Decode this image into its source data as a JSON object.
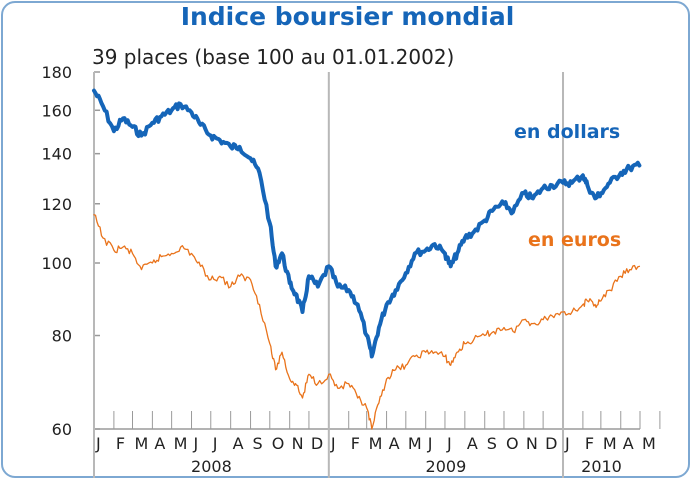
{
  "title": "Indice boursier mondial",
  "subtitle": "39 places (base 100 au 01.01.2002)",
  "colors": {
    "dollars": "#1565b8",
    "euros": "#e9731b",
    "axis": "#9a9a9a",
    "frame": "#7da8d2"
  },
  "chart_data": {
    "type": "line",
    "title": "Indice boursier mondial",
    "subtitle": "39 places (base 100 au 01.01.2002)",
    "y_scale": "log",
    "ylim": [
      60,
      180
    ],
    "y_ticks": [
      60,
      80,
      100,
      120,
      140,
      160,
      180
    ],
    "x_month_labels": [
      "J",
      "F",
      "M",
      "A",
      "M",
      "J",
      "J",
      "A",
      "S",
      "O",
      "N",
      "D",
      "J",
      "F",
      "M",
      "A",
      "M",
      "J",
      "J",
      "A",
      "S",
      "O",
      "N",
      "D",
      "J",
      "F",
      "M",
      "A",
      "M"
    ],
    "years": [
      "2008",
      "2009",
      "2010"
    ],
    "x_range": [
      "2008-01-01",
      "2010-04-30"
    ],
    "grid": false,
    "series": [
      {
        "name": "en dollars",
        "x": [
          "2008-01-01",
          "2008-01-15",
          "2008-02-01",
          "2008-02-15",
          "2008-03-01",
          "2008-03-15",
          "2008-04-01",
          "2008-04-15",
          "2008-05-01",
          "2008-05-15",
          "2008-06-01",
          "2008-06-15",
          "2008-07-01",
          "2008-07-15",
          "2008-08-01",
          "2008-08-15",
          "2008-09-01",
          "2008-09-15",
          "2008-10-01",
          "2008-10-10",
          "2008-10-20",
          "2008-11-01",
          "2008-11-10",
          "2008-11-21",
          "2008-12-01",
          "2008-12-15",
          "2009-01-01",
          "2009-01-15",
          "2009-02-01",
          "2009-02-15",
          "2009-03-01",
          "2009-03-09",
          "2009-03-20",
          "2009-04-01",
          "2009-04-15",
          "2009-05-01",
          "2009-05-15",
          "2009-06-01",
          "2009-06-15",
          "2009-07-01",
          "2009-07-10",
          "2009-07-20",
          "2009-08-01",
          "2009-08-15",
          "2009-09-01",
          "2009-09-15",
          "2009-10-01",
          "2009-10-15",
          "2009-11-01",
          "2009-11-15",
          "2009-12-01",
          "2009-12-15",
          "2010-01-01",
          "2010-01-15",
          "2010-02-01",
          "2010-02-08",
          "2010-02-20",
          "2010-03-01",
          "2010-03-15",
          "2010-04-01",
          "2010-04-15",
          "2010-04-30"
        ],
        "values": [
          170,
          162,
          150,
          156,
          152,
          148,
          154,
          157,
          160,
          163,
          159,
          153,
          148,
          146,
          143,
          143,
          138,
          132,
          113,
          99,
          103,
          94,
          91,
          86,
          96,
          93,
          99,
          93,
          92,
          88,
          80,
          75,
          82,
          88,
          92,
          97,
          103,
          104,
          106,
          103,
          99,
          103,
          108,
          110,
          114,
          118,
          120,
          117,
          124,
          122,
          126,
          127,
          128,
          128,
          131,
          127,
          122,
          124,
          128,
          132,
          134,
          135
        ]
      },
      {
        "name": "en euros",
        "x": [
          "2008-01-01",
          "2008-01-15",
          "2008-02-01",
          "2008-02-15",
          "2008-03-01",
          "2008-03-15",
          "2008-04-01",
          "2008-04-15",
          "2008-05-01",
          "2008-05-15",
          "2008-06-01",
          "2008-06-15",
          "2008-07-01",
          "2008-07-15",
          "2008-08-01",
          "2008-08-15",
          "2008-09-01",
          "2008-09-15",
          "2008-10-01",
          "2008-10-10",
          "2008-10-20",
          "2008-11-01",
          "2008-11-10",
          "2008-11-21",
          "2008-12-01",
          "2008-12-15",
          "2009-01-01",
          "2009-01-15",
          "2009-02-01",
          "2009-02-15",
          "2009-03-01",
          "2009-03-09",
          "2009-03-20",
          "2009-04-01",
          "2009-04-15",
          "2009-05-01",
          "2009-05-15",
          "2009-06-01",
          "2009-06-15",
          "2009-07-01",
          "2009-07-10",
          "2009-07-20",
          "2009-08-01",
          "2009-08-15",
          "2009-09-01",
          "2009-09-15",
          "2009-10-01",
          "2009-10-15",
          "2009-11-01",
          "2009-11-15",
          "2009-12-01",
          "2009-12-15",
          "2010-01-01",
          "2010-01-15",
          "2010-02-01",
          "2010-02-08",
          "2010-02-20",
          "2010-03-01",
          "2010-03-15",
          "2010-04-01",
          "2010-04-15",
          "2010-04-30"
        ],
        "values": [
          116,
          108,
          104,
          105,
          103,
          98,
          100,
          102,
          103,
          105,
          103,
          99,
          95,
          96,
          93,
          96,
          95,
          88,
          78,
          72,
          76,
          70,
          69,
          66,
          71,
          69,
          71,
          68,
          69,
          66,
          64,
          60,
          65,
          70,
          72,
          73,
          75,
          76,
          76,
          75,
          73,
          76,
          78,
          79,
          80,
          81,
          82,
          81,
          84,
          83,
          84,
          85,
          86,
          86,
          88,
          89,
          88,
          89,
          92,
          96,
          98,
          99
        ]
      }
    ]
  }
}
